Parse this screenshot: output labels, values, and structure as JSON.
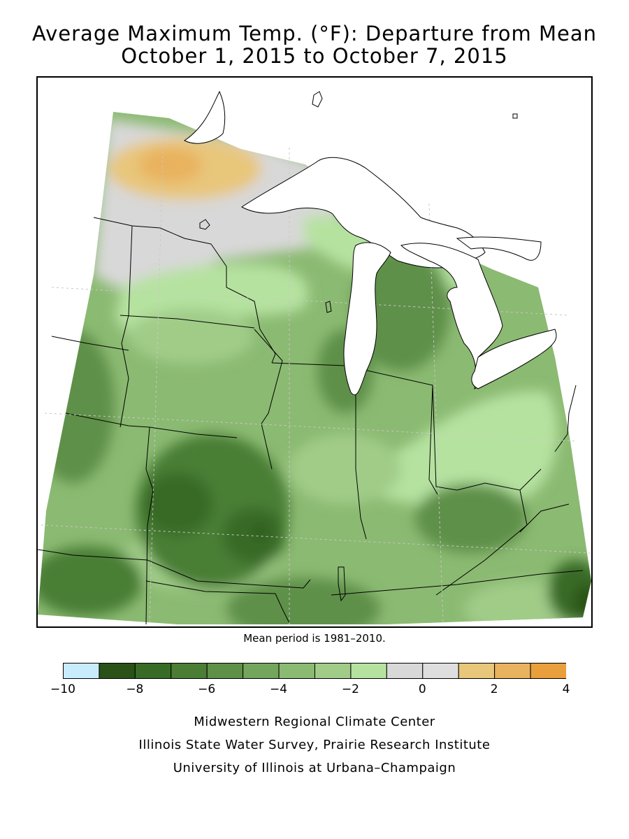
{
  "title_line1": "Average Maximum Temp. (°F): Departure from Mean",
  "title_line2": "October 1, 2015 to October 7, 2015",
  "mean_period_note": "Mean period is 1981–2010.",
  "legend": {
    "bins": [
      {
        "from": -10,
        "to": -9,
        "color": "#c8ecfc"
      },
      {
        "from": -9,
        "to": -8,
        "color": "#2a5218"
      },
      {
        "from": -8,
        "to": -7,
        "color": "#386b25"
      },
      {
        "from": -7,
        "to": -6,
        "color": "#4a7e35"
      },
      {
        "from": -6,
        "to": -5,
        "color": "#5f9048"
      },
      {
        "from": -5,
        "to": -4,
        "color": "#74a55c"
      },
      {
        "from": -4,
        "to": -3,
        "color": "#8bba72"
      },
      {
        "from": -3,
        "to": -2,
        "color": "#a0cc88"
      },
      {
        "from": -2,
        "to": -1,
        "color": "#b6e2a0"
      },
      {
        "from": -1,
        "to": 0,
        "color": "#d8d8d8"
      },
      {
        "from": 0,
        "to": 1,
        "color": "#dedede"
      },
      {
        "from": 1,
        "to": 2,
        "color": "#e8c67a"
      },
      {
        "from": 2,
        "to": 3,
        "color": "#e9b25e"
      },
      {
        "from": 3,
        "to": 4,
        "color": "#e99f3b"
      }
    ],
    "tick_labels": [
      {
        "value": -10,
        "label": "−10"
      },
      {
        "value": -8,
        "label": "−8"
      },
      {
        "value": -6,
        "label": "−6"
      },
      {
        "value": -4,
        "label": "−4"
      },
      {
        "value": -2,
        "label": "−2"
      },
      {
        "value": 0,
        "label": "0"
      },
      {
        "value": 2,
        "label": "2"
      },
      {
        "value": 4,
        "label": "4"
      }
    ]
  },
  "credits": {
    "line1": "Midwestern Regional Climate Center",
    "line2": "Illinois State Water Survey, Prairie Research Institute",
    "line3": "University of Illinois at Urbana–Champaign"
  },
  "colors": {
    "lake_fill": "#ffffff",
    "border_line": "#000000",
    "grid_line": "#c8c8c8"
  }
}
